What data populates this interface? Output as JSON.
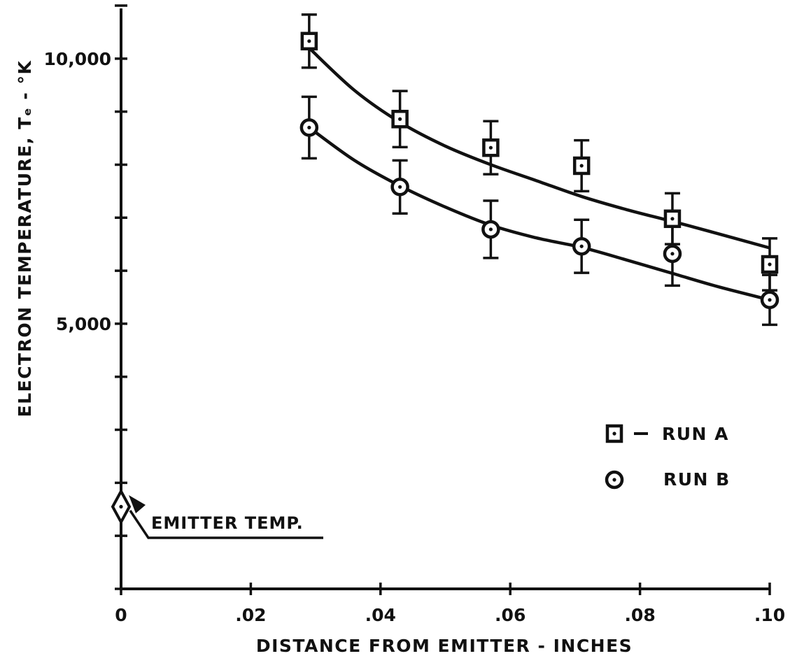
{
  "chart_data": {
    "type": "scatter",
    "title": "",
    "xlabel": "DISTANCE FROM EMITTER - INCHES",
    "ylabel": "ELECTRON TEMPERATURE, Tₑ - °K",
    "xlim": [
      0,
      0.1
    ],
    "ylim": [
      0,
      11000
    ],
    "x_ticks": [
      0,
      0.02,
      0.04,
      0.06,
      0.08,
      0.1
    ],
    "x_tick_labels": [
      "0",
      ".02",
      ".04",
      ".06",
      ".08",
      ".10"
    ],
    "y_ticks": [
      0,
      1000,
      2000,
      3000,
      4000,
      5000,
      6000,
      7000,
      8000,
      9000,
      10000,
      11000
    ],
    "y_tick_labels": [
      {
        "value": 5000,
        "label": "5,000"
      },
      {
        "value": 10000,
        "label": "10,000"
      }
    ],
    "grid": false,
    "legend_position": "lower-right",
    "series": [
      {
        "name": "RUN A",
        "marker": "square-dot",
        "points": [
          {
            "x": 0.029,
            "y": 10330,
            "err": 500
          },
          {
            "x": 0.043,
            "y": 8860,
            "err": 530
          },
          {
            "x": 0.057,
            "y": 8320,
            "err": 500
          },
          {
            "x": 0.071,
            "y": 7980,
            "err": 480
          },
          {
            "x": 0.085,
            "y": 6980,
            "err": 480
          },
          {
            "x": 0.1,
            "y": 6120,
            "err": 490
          }
        ],
        "fit": [
          {
            "x": 0.029,
            "y": 10200
          },
          {
            "x": 0.036,
            "y": 9400
          },
          {
            "x": 0.043,
            "y": 8800
          },
          {
            "x": 0.05,
            "y": 8350
          },
          {
            "x": 0.057,
            "y": 8000
          },
          {
            "x": 0.064,
            "y": 7700
          },
          {
            "x": 0.071,
            "y": 7400
          },
          {
            "x": 0.078,
            "y": 7150
          },
          {
            "x": 0.085,
            "y": 6930
          },
          {
            "x": 0.092,
            "y": 6700
          },
          {
            "x": 0.1,
            "y": 6430
          }
        ]
      },
      {
        "name": "RUN B",
        "marker": "circle-dot",
        "points": [
          {
            "x": 0.029,
            "y": 8700,
            "err": 580
          },
          {
            "x": 0.043,
            "y": 7580,
            "err": 500
          },
          {
            "x": 0.057,
            "y": 6780,
            "err": 540
          },
          {
            "x": 0.071,
            "y": 6460,
            "err": 500
          },
          {
            "x": 0.085,
            "y": 6320,
            "err": 600
          },
          {
            "x": 0.1,
            "y": 5450,
            "err": 470
          }
        ],
        "fit": [
          {
            "x": 0.029,
            "y": 8700
          },
          {
            "x": 0.036,
            "y": 8080
          },
          {
            "x": 0.043,
            "y": 7600
          },
          {
            "x": 0.05,
            "y": 7200
          },
          {
            "x": 0.057,
            "y": 6860
          },
          {
            "x": 0.064,
            "y": 6620
          },
          {
            "x": 0.071,
            "y": 6440
          },
          {
            "x": 0.078,
            "y": 6200
          },
          {
            "x": 0.085,
            "y": 5950
          },
          {
            "x": 0.092,
            "y": 5700
          },
          {
            "x": 0.1,
            "y": 5450
          }
        ]
      }
    ],
    "annotations": [
      {
        "text": "EMITTER TEMP.",
        "marker": "diamond-dot",
        "x": 0.0,
        "y": 1550
      }
    ]
  }
}
